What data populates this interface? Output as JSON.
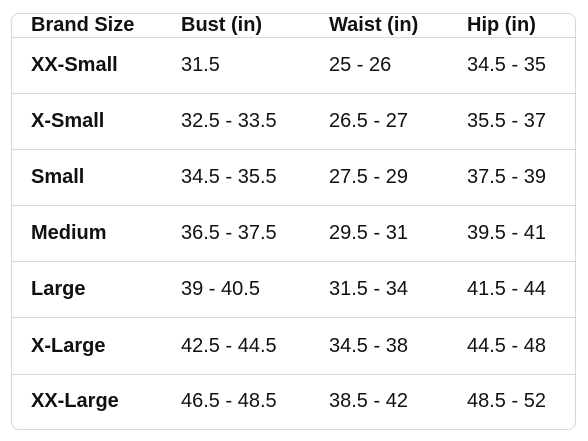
{
  "table": {
    "headers": [
      "Brand Size",
      "Bust (in)",
      "Waist (in)",
      "Hip (in)"
    ],
    "rows": [
      [
        "XX-Small",
        "31.5",
        "25 - 26",
        "34.5 - 35"
      ],
      [
        "X-Small",
        "32.5 - 33.5",
        "26.5 - 27",
        "35.5 - 37"
      ],
      [
        "Small",
        "34.5 - 35.5",
        "27.5 - 29",
        "37.5 - 39"
      ],
      [
        "Medium",
        "36.5 - 37.5",
        "29.5 - 31",
        "39.5 - 41"
      ],
      [
        "Large",
        "39 - 40.5",
        "31.5 - 34",
        "41.5 - 44"
      ],
      [
        "X-Large",
        "42.5 - 44.5",
        "34.5 - 38",
        "44.5 - 48"
      ],
      [
        "XX-Large",
        "46.5 - 48.5",
        "38.5 - 42",
        "48.5 - 52"
      ]
    ]
  },
  "colors": {
    "text": "#0f1111",
    "border": "#d5d9d9",
    "background": "#ffffff"
  }
}
